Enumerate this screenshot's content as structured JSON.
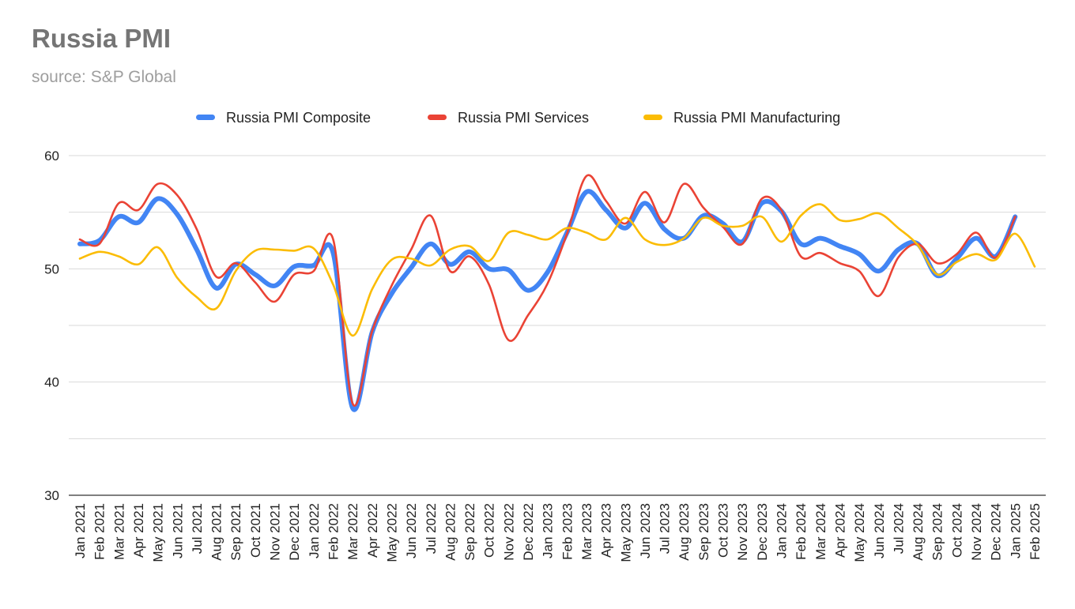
{
  "chart_data": {
    "type": "line",
    "title": "Russia PMI",
    "subtitle": "source: S&P Global",
    "xlabel": "",
    "ylabel": "",
    "ylim": [
      30,
      60
    ],
    "yticks": [
      30,
      40,
      50,
      60
    ],
    "grid": true,
    "legend_position": "top",
    "categories": [
      "Jan 2021",
      "Feb 2021",
      "Mar 2021",
      "Apr 2021",
      "May 2021",
      "Jun 2021",
      "Jul 2021",
      "Aug 2021",
      "Sep 2021",
      "Oct 2021",
      "Nov 2021",
      "Dec 2021",
      "Jan 2022",
      "Feb 2022",
      "Mar 2022",
      "Apr 2022",
      "May 2022",
      "Jun 2022",
      "Jul 2022",
      "Aug 2022",
      "Sep 2022",
      "Oct 2022",
      "Nov 2022",
      "Dec 2022",
      "Jan 2023",
      "Feb 2023",
      "Mar 2023",
      "Apr 2023",
      "May 2023",
      "Jun 2023",
      "Jul 2023",
      "Aug 2023",
      "Sep 2023",
      "Oct 2023",
      "Nov 2023",
      "Dec 2023",
      "Jan 2024",
      "Feb 2024",
      "Mar 2024",
      "Apr 2024",
      "May 2024",
      "Jun 2024",
      "Jul 2024",
      "Aug 2024",
      "Sep 2024",
      "Oct 2024",
      "Nov 2024",
      "Dec 2024",
      "Jan 2025",
      "Feb 2025"
    ],
    "series": [
      {
        "name": "Russia PMI Composite",
        "color": "#4285F4",
        "values": [
          52.2,
          52.5,
          54.6,
          54.1,
          56.2,
          54.8,
          51.7,
          48.3,
          50.4,
          49.5,
          48.5,
          50.2,
          50.3,
          51.4,
          37.7,
          44.4,
          47.8,
          50.1,
          52.2,
          50.4,
          51.5,
          50.0,
          49.9,
          48.1,
          49.7,
          53.2,
          56.8,
          55.2,
          53.6,
          55.8,
          53.5,
          52.7,
          54.7,
          54.0,
          52.4,
          55.8,
          55.1,
          52.2,
          52.7,
          52.0,
          51.3,
          49.8,
          51.7,
          52.2,
          49.4,
          50.9,
          52.7,
          51.1,
          54.6,
          null
        ]
      },
      {
        "name": "Russia PMI Services",
        "color": "#EA4335",
        "values": [
          52.6,
          52.2,
          55.8,
          55.2,
          57.5,
          56.5,
          53.5,
          49.3,
          50.5,
          48.8,
          47.1,
          49.5,
          49.8,
          52.6,
          38.1,
          44.5,
          48.5,
          51.7,
          54.7,
          49.8,
          51.1,
          48.6,
          43.7,
          45.9,
          48.7,
          53.1,
          58.2,
          56.0,
          54.0,
          56.8,
          54.1,
          57.5,
          55.4,
          53.7,
          52.2,
          56.2,
          55.2,
          51.1,
          51.4,
          50.5,
          49.8,
          47.6,
          51.0,
          52.2,
          50.5,
          51.3,
          53.2,
          51.0,
          54.6,
          null
        ]
      },
      {
        "name": "Russia PMI Manufacturing",
        "color": "#FBBC04",
        "values": [
          50.9,
          51.5,
          51.1,
          50.4,
          51.9,
          49.2,
          47.5,
          46.5,
          49.8,
          51.6,
          51.7,
          51.6,
          51.8,
          48.6,
          44.1,
          48.2,
          50.8,
          50.9,
          50.3,
          51.7,
          52.0,
          50.7,
          53.2,
          53.0,
          52.6,
          53.6,
          53.2,
          52.6,
          54.5,
          52.6,
          52.1,
          52.7,
          54.5,
          53.8,
          53.8,
          54.6,
          52.4,
          54.7,
          55.7,
          54.3,
          54.4,
          54.9,
          53.6,
          52.1,
          49.5,
          50.6,
          51.3,
          50.8,
          53.1,
          50.2
        ]
      }
    ]
  }
}
